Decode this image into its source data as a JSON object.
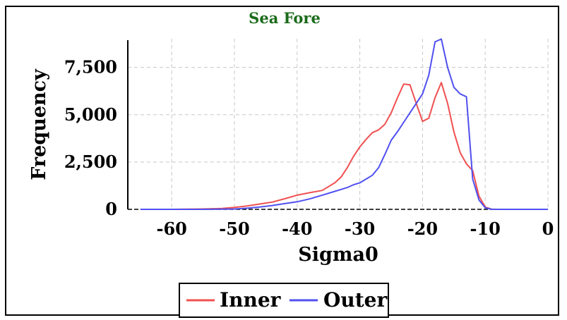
{
  "chart_data": {
    "type": "line",
    "title": "Sea Fore",
    "xlabel": "Sigma0",
    "ylabel": "Frequency",
    "xlim": [
      -67,
      0
    ],
    "ylim": [
      0,
      9200
    ],
    "xticks": [
      -60,
      -50,
      -40,
      -30,
      -20,
      -10,
      0
    ],
    "yticks": [
      0,
      2500,
      5000,
      7500
    ],
    "ytick_labels": [
      "0",
      "2,500",
      "5,000",
      "7,500"
    ],
    "grid": true,
    "legend_position": "bottom-center",
    "series": [
      {
        "name": "Inner",
        "color": "#f05050",
        "x": [
          -65,
          -60,
          -55,
          -52,
          -50,
          -48,
          -46,
          -44,
          -42,
          -40,
          -38,
          -36,
          -34,
          -33,
          -32,
          -31,
          -30,
          -29,
          -28,
          -27,
          -26,
          -25,
          -24,
          -23,
          -22,
          -21,
          -20,
          -19,
          -18,
          -17,
          -16,
          -15,
          -14,
          -13,
          -12,
          -11,
          -10,
          -9,
          -8,
          -5,
          0
        ],
        "y": [
          0,
          0,
          20,
          50,
          100,
          180,
          280,
          380,
          560,
          750,
          880,
          1000,
          1400,
          1700,
          2200,
          2800,
          3300,
          3700,
          4050,
          4200,
          4500,
          5100,
          5900,
          6620,
          6580,
          5600,
          4650,
          4820,
          5900,
          6700,
          5600,
          4100,
          3000,
          2400,
          2050,
          700,
          120,
          10,
          0,
          0,
          0
        ]
      },
      {
        "name": "Outer",
        "color": "#5050f0",
        "x": [
          -65,
          -55,
          -50,
          -48,
          -46,
          -44,
          -42,
          -40,
          -38,
          -36,
          -34,
          -33,
          -32,
          -31,
          -30,
          -29,
          -28,
          -27,
          -26,
          -25,
          -24,
          -23,
          -22,
          -21,
          -20,
          -19,
          -18,
          -17,
          -16,
          -15,
          -14,
          -13,
          -12,
          -11,
          -10,
          -9,
          -8,
          -5,
          0
        ],
        "y": [
          0,
          0,
          20,
          60,
          120,
          200,
          300,
          400,
          550,
          750,
          950,
          1050,
          1150,
          1300,
          1400,
          1600,
          1800,
          2200,
          2900,
          3650,
          4100,
          4600,
          5100,
          5600,
          6100,
          7100,
          8850,
          9000,
          7500,
          6450,
          6100,
          5950,
          1600,
          500,
          80,
          5,
          0,
          0,
          0
        ]
      }
    ]
  }
}
